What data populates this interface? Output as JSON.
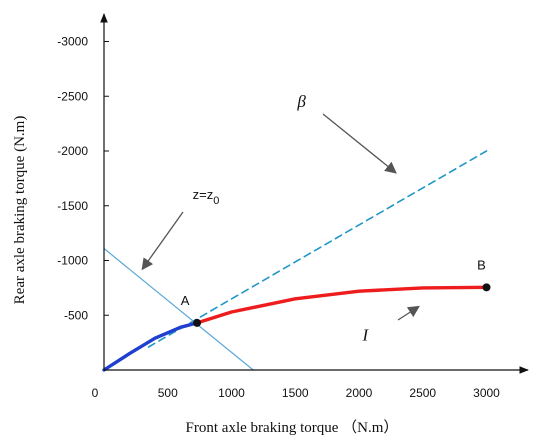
{
  "chart_data": {
    "type": "line",
    "title": "",
    "xlabel": "Front axle braking torque （N.m）",
    "ylabel": "Rear axle braking torque (N.m)",
    "xlim": [
      0,
      3200
    ],
    "ylim": [
      0,
      -3250
    ],
    "x_ticks": [
      {
        "value": 0,
        "label": "0"
      },
      {
        "value": 500,
        "label": "500"
      },
      {
        "value": 1000,
        "label": "1000"
      },
      {
        "value": 1500,
        "label": "1500"
      },
      {
        "value": 2000,
        "label": "2000"
      },
      {
        "value": 2500,
        "label": "2500"
      },
      {
        "value": 3000,
        "label": "3000"
      }
    ],
    "y_ticks": [
      {
        "value": -500,
        "label": "-500"
      },
      {
        "value": -1000,
        "label": "-1000"
      },
      {
        "value": -1500,
        "label": "-1500"
      },
      {
        "value": -2000,
        "label": "-2000"
      },
      {
        "value": -2500,
        "label": "-2500"
      },
      {
        "value": -3000,
        "label": "-3000"
      }
    ],
    "series": [
      {
        "name": "",
        "color": "#2196c8",
        "style": "dashed",
        "x": [
          350,
          3000
        ],
        "y": [
          -210,
          -2000
        ]
      },
      {
        "name": "",
        "color": "#5aa9d6",
        "style": "solid",
        "x": [
          0,
          1170
        ],
        "y": [
          -1110,
          0
        ]
      },
      {
        "name": "",
        "color": "#1f3fd0",
        "style": "solid",
        "x": [
          0,
          200,
          400,
          600,
          730
        ],
        "y": [
          0,
          -150,
          -290,
          -390,
          -430
        ]
      },
      {
        "name": "",
        "color": "#ee1c1c",
        "style": "solid",
        "x": [
          730,
          1000,
          1500,
          2000,
          2500,
          3000
        ],
        "y": [
          -430,
          -530,
          -650,
          -720,
          -750,
          -755
        ]
      }
    ],
    "points": [
      {
        "label": "A",
        "x": 730,
        "y": -430
      },
      {
        "label": "B",
        "x": 3000,
        "y": -755
      }
    ],
    "annotations": [
      {
        "text": "β",
        "x": 1550,
        "y": -2400,
        "arrow_to": [
          2290,
          -1800
        ]
      },
      {
        "text": "z=z0",
        "x": 800,
        "y": -1560,
        "arrow_to": [
          300,
          -920
        ]
      },
      {
        "text": "I",
        "x": 2050,
        "y": -270,
        "arrow_to": [
          2470,
          -580
        ]
      }
    ],
    "grid": false,
    "legend": "none"
  }
}
